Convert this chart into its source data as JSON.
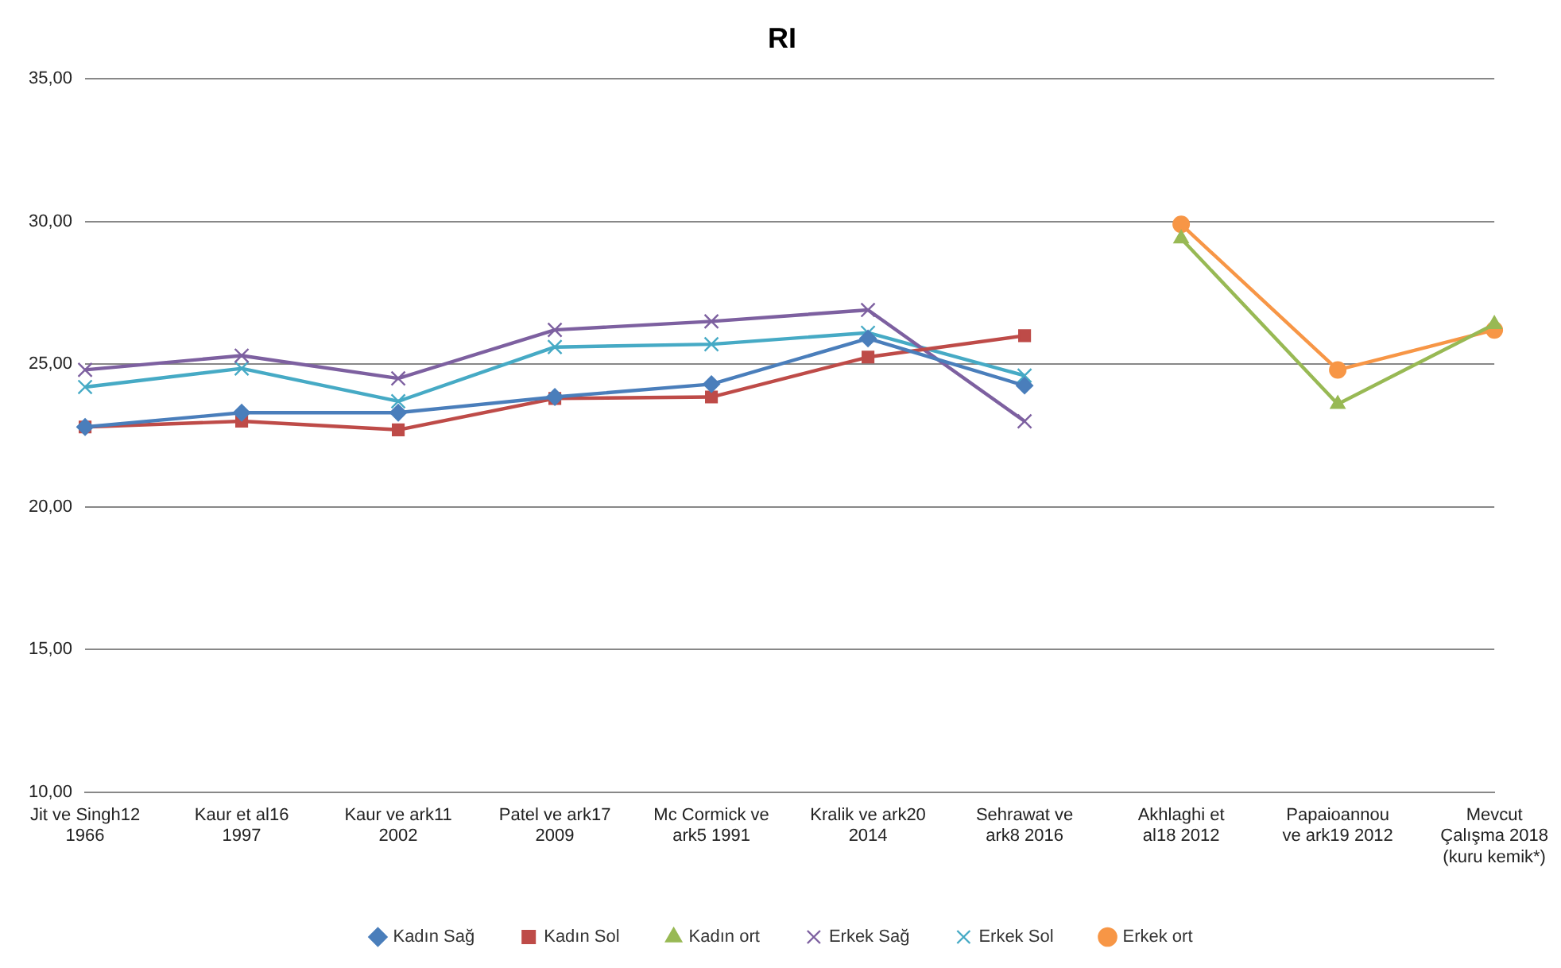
{
  "chart_data": {
    "type": "line",
    "title": "RI",
    "categories": [
      "Jit ve Singh12 1966",
      "Kaur et al16 1997",
      "Kaur ve ark11 2002",
      "Patel ve ark17 2009",
      "Mc Cormick ve ark5 1991",
      "Kralik ve ark20 2014",
      "Sehrawat ve ark8 2016",
      "Akhlaghi et al18 2012",
      "Papaioannou ve ark19 2012",
      "Mevcut Çalışma 2018 (kuru kemik*)"
    ],
    "series": [
      {
        "name": "Kadın Sağ",
        "color": "#4a7ebb",
        "marker": "diamond",
        "values": [
          22.8,
          23.3,
          23.3,
          23.85,
          24.3,
          25.9,
          24.25,
          null,
          null,
          null
        ]
      },
      {
        "name": "Kadın Sol",
        "color": "#be4b48",
        "marker": "square",
        "values": [
          22.8,
          23.0,
          22.7,
          23.8,
          23.85,
          25.25,
          26.0,
          null,
          null,
          null
        ]
      },
      {
        "name": "Kadın ort",
        "color": "#98b954",
        "marker": "triangle",
        "values": [
          null,
          null,
          null,
          null,
          null,
          null,
          null,
          29.4,
          23.6,
          26.4
        ]
      },
      {
        "name": "Erkek Sağ",
        "color": "#7d60a0",
        "marker": "cross",
        "values": [
          24.8,
          25.3,
          24.5,
          26.2,
          26.5,
          26.9,
          23.0,
          null,
          null,
          null
        ]
      },
      {
        "name": "Erkek Sol",
        "color": "#46aac5",
        "marker": "cross",
        "values": [
          24.2,
          24.85,
          23.7,
          25.6,
          25.7,
          26.1,
          24.6,
          null,
          null,
          null
        ]
      },
      {
        "name": "Erkek ort",
        "color": "#f79646",
        "marker": "circle",
        "values": [
          null,
          null,
          null,
          null,
          null,
          null,
          null,
          29.9,
          24.8,
          26.2
        ]
      }
    ],
    "ylim": [
      10,
      35
    ],
    "yticks": [
      {
        "value": 10,
        "label": "10,00"
      },
      {
        "value": 15,
        "label": "15,00"
      },
      {
        "value": 20,
        "label": "20,00"
      },
      {
        "value": 25,
        "label": "25,00"
      },
      {
        "value": 30,
        "label": "30,00"
      },
      {
        "value": 35,
        "label": "35,00"
      }
    ],
    "grid": "y",
    "legend": "bottom"
  }
}
